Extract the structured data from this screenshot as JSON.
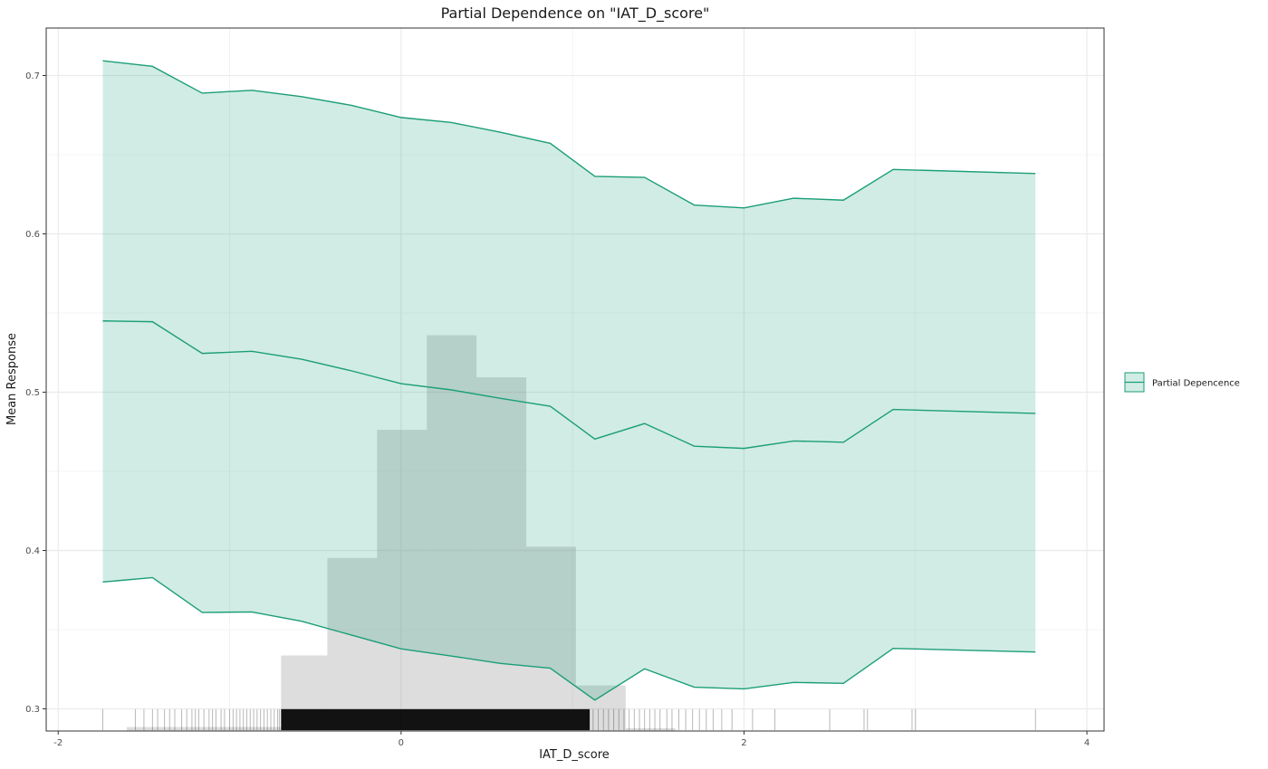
{
  "chart_data": {
    "type": "line",
    "title": "Partial Dependence on \"IAT_D_score\"",
    "xlabel": "IAT_D_score",
    "ylabel": "Mean Response",
    "xlim": [
      -2.07,
      4.1
    ],
    "ylim": [
      0.286,
      0.73
    ],
    "x_ticks": [
      -2,
      0,
      2,
      4
    ],
    "y_ticks": [
      0.3,
      0.4,
      0.5,
      0.6,
      0.7
    ],
    "x_tick_labels": [
      "-2",
      "0",
      "2",
      "4"
    ],
    "y_tick_labels": [
      "0.3",
      "0.4",
      "0.5",
      "0.6",
      "0.7"
    ],
    "grid": true,
    "legend": {
      "position": "right",
      "entries": [
        "Partial Depencence"
      ]
    },
    "colors": {
      "line": "#1b9e77",
      "ribbon": "#1b9e77",
      "histogram": "#999999",
      "rug": "#000000",
      "grid": "#ebebeb",
      "panel_border": "#333333"
    },
    "series": [
      {
        "name": "Partial Depencence",
        "x": [
          -1.74,
          -1.45,
          -1.16,
          -0.87,
          -0.58,
          -0.29,
          0.0,
          0.29,
          0.58,
          0.87,
          1.13,
          1.42,
          1.71,
          2.0,
          2.29,
          2.58,
          2.87,
          3.7
        ],
        "mean": [
          0.545,
          0.5445,
          0.5245,
          0.5258,
          0.5208,
          0.5135,
          0.5054,
          0.5015,
          0.4961,
          0.4911,
          0.4704,
          0.4802,
          0.4659,
          0.4645,
          0.4692,
          0.4684,
          0.4891,
          0.4866
        ],
        "lower": [
          0.3801,
          0.3829,
          0.3609,
          0.3612,
          0.3553,
          0.3466,
          0.3379,
          0.3334,
          0.3287,
          0.3257,
          0.3055,
          0.3253,
          0.3137,
          0.3126,
          0.3167,
          0.3161,
          0.3382,
          0.3359
        ],
        "upper": [
          0.7093,
          0.7058,
          0.6889,
          0.6907,
          0.6867,
          0.6812,
          0.6735,
          0.6704,
          0.6642,
          0.6572,
          0.6363,
          0.6357,
          0.6182,
          0.6164,
          0.6225,
          0.6213,
          0.6407,
          0.6381
        ]
      }
    ],
    "histogram": {
      "bin_edges": [
        -1.6,
        -1.3,
        -1.0,
        -0.7,
        -0.43,
        -0.14,
        0.15,
        0.44,
        0.73,
        1.02,
        1.31,
        1.6
      ],
      "tops": [
        0.2885,
        0.2885,
        0.2885,
        0.3337,
        0.3953,
        0.4762,
        0.536,
        0.5094,
        0.4024,
        0.3148,
        0.2878
      ]
    },
    "rug_x": [
      -1.74,
      -1.55,
      -1.5,
      -1.45,
      -1.42,
      -1.38,
      -1.35,
      -1.32,
      -1.28,
      -1.25,
      -1.22,
      -1.2,
      -1.18,
      -1.15,
      -1.12,
      -1.1,
      -1.08,
      -1.05,
      -1.03,
      -1.0,
      -0.98,
      -0.96,
      -0.94,
      -0.92,
      -0.9,
      -0.88,
      -0.86,
      -0.84,
      -0.82,
      -0.8,
      -0.78,
      -0.76,
      -0.74,
      -0.72,
      -0.71,
      1.12,
      1.15,
      1.18,
      1.21,
      1.24,
      1.27,
      1.3,
      1.33,
      1.36,
      1.39,
      1.42,
      1.45,
      1.48,
      1.51,
      1.55,
      1.58,
      1.62,
      1.66,
      1.7,
      1.74,
      1.78,
      1.82,
      1.87,
      1.93,
      2.05,
      2.18,
      2.5,
      2.7,
      2.72,
      2.98,
      3.0,
      3.7
    ]
  }
}
